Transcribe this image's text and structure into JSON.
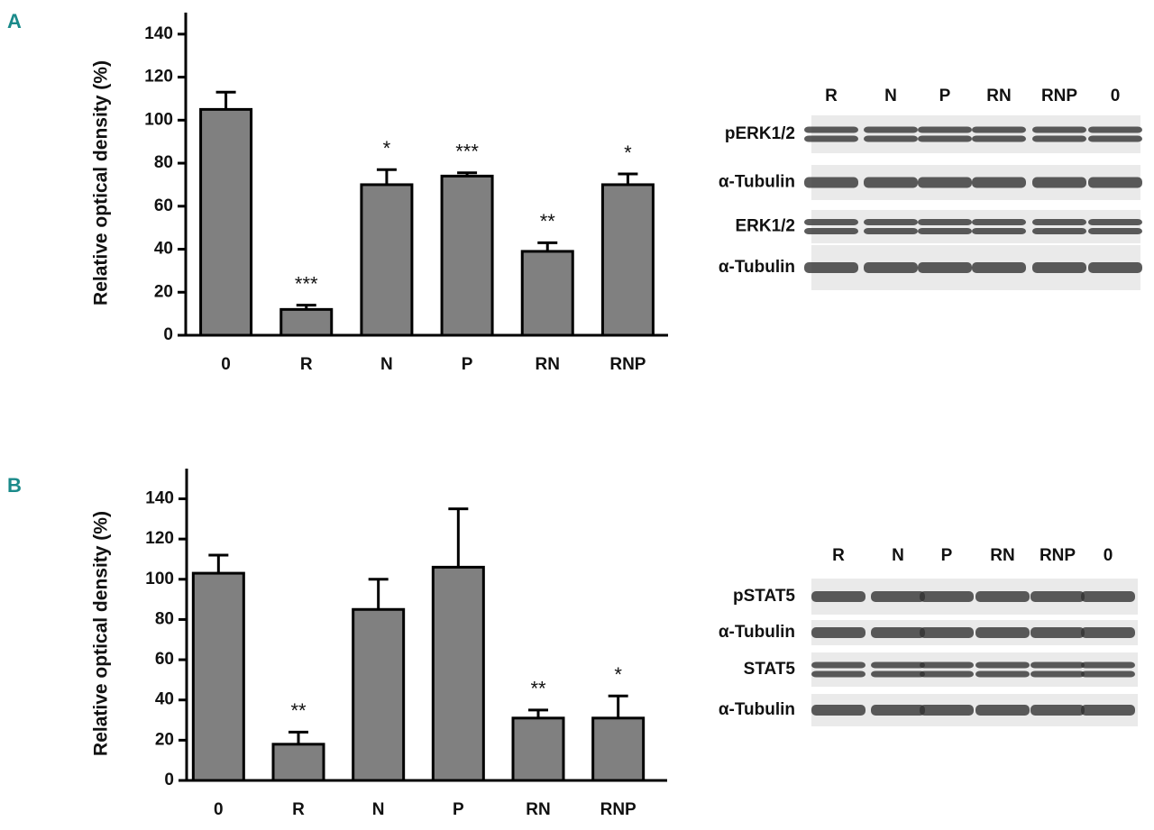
{
  "panels": [
    "A",
    "B"
  ],
  "chart_data": [
    {
      "type": "bar",
      "ylabel": "Relative optical density (%)",
      "categories": [
        "0",
        "R",
        "N",
        "P",
        "RN",
        "RNP"
      ],
      "values": [
        105,
        12,
        70,
        74,
        39,
        70
      ],
      "errors": [
        8,
        2,
        7,
        1.5,
        4,
        5
      ],
      "annotations": [
        null,
        "***",
        "*",
        "***",
        "**",
        "*"
      ],
      "color": "#808080",
      "ylim": [
        0,
        150
      ],
      "yticks": [
        0,
        20,
        40,
        60,
        80,
        100,
        120,
        140
      ]
    },
    {
      "type": "bar",
      "ylabel": "Relative optical density (%)",
      "categories": [
        "0",
        "R",
        "N",
        "P",
        "RN",
        "RNP"
      ],
      "values": [
        103,
        18,
        85,
        106,
        31,
        31
      ],
      "errors": [
        9,
        6,
        15,
        29,
        4,
        11
      ],
      "annotations": [
        null,
        "**",
        null,
        null,
        "**",
        "*"
      ],
      "color": "#808080",
      "ylim": [
        0,
        155
      ],
      "yticks": [
        0,
        20,
        40,
        60,
        80,
        100,
        120,
        140
      ]
    }
  ],
  "blots": [
    {
      "lanes": [
        "R",
        "N",
        "P",
        "RN",
        "RNP",
        "0"
      ],
      "rows": [
        "pERK1/2",
        "α-Tubulin",
        "ERK1/2",
        "α-Tubulin"
      ]
    },
    {
      "lanes": [
        "R",
        "N",
        "P",
        "RN",
        "RNP",
        "0"
      ],
      "rows": [
        "pSTAT5",
        "α-Tubulin",
        "STAT5",
        "α-Tubulin"
      ]
    }
  ]
}
